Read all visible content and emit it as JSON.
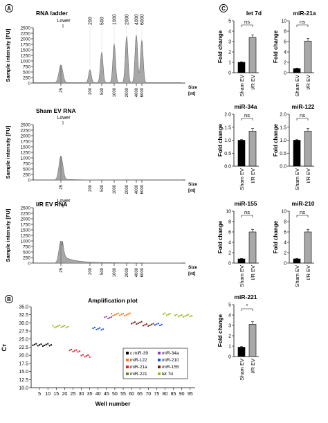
{
  "panel_labels": {
    "a": "A",
    "b": "B",
    "c": "C"
  },
  "electropherograms": [
    {
      "title": "RNA ladder",
      "ylabel": "Sample intensity [FU]",
      "ylim": [
        0,
        2500
      ],
      "yticks": [
        "0",
        "250",
        "500",
        "750",
        "1000",
        "1250",
        "1500",
        "1750",
        "2000",
        "2250",
        "2500"
      ],
      "xlabel": "Size",
      "xunit": "[nt]",
      "top_markers": [
        "Lower",
        "200",
        "500",
        "1000",
        "2000",
        "4000",
        "6000"
      ],
      "bottom_ticks": [
        "25",
        "200",
        "500",
        "1000",
        "2000",
        "4000",
        "6000"
      ]
    },
    {
      "title": "Sham EV RNA",
      "ylabel": "Sample intensity [FU]",
      "ylim": [
        0,
        2500
      ],
      "yticks": [
        "0",
        "250",
        "500",
        "750",
        "1000",
        "1250",
        "1500",
        "1750",
        "2000",
        "2250",
        "2500"
      ],
      "xlabel": "Size",
      "xunit": "[nt]",
      "top_markers": [
        "Lower"
      ],
      "bottom_ticks": [
        "25",
        "200",
        "500",
        "1000",
        "2000",
        "4000",
        "6000"
      ]
    },
    {
      "title": "I/R EV RNA",
      "ylabel": "Sample intensity [FU]",
      "ylim": [
        0,
        2500
      ],
      "yticks": [
        "0",
        "250",
        "500",
        "750",
        "1000",
        "1250",
        "1500",
        "1750",
        "2000",
        "2250",
        "2500"
      ],
      "xlabel": "Size",
      "xunit": "[nt]",
      "top_markers": [
        "Lower"
      ],
      "bottom_ticks": [
        "25",
        "200",
        "500",
        "1000",
        "2000",
        "4000",
        "6000"
      ]
    }
  ],
  "chart_data": [
    {
      "type": "area",
      "title": "RNA ladder",
      "peaks": [
        {
          "label": "25",
          "height": 800
        },
        {
          "label": "200",
          "height": 590
        },
        {
          "label": "500",
          "height": 1380
        },
        {
          "label": "1000",
          "height": 1750
        },
        {
          "label": "2000",
          "height": 2100
        },
        {
          "label": "4000",
          "height": 2160
        },
        {
          "label": "6000",
          "height": 1930
        }
      ]
    },
    {
      "type": "area",
      "title": "Sham EV RNA",
      "peaks": [
        {
          "label": "25",
          "height": 1080
        }
      ]
    },
    {
      "type": "area",
      "title": "I/R EV RNA",
      "peaks": [
        {
          "label": "25",
          "height": 1000
        }
      ]
    },
    {
      "type": "scatter",
      "title": "Amplification plot",
      "xlabel": "Well number",
      "ylabel": "Cт",
      "ylim": [
        10,
        35
      ],
      "yticks": [
        "10.0",
        "12.5",
        "15.0",
        "17.5",
        "20.0",
        "22.5",
        "25.0",
        "27.5",
        "30.0",
        "32.5",
        "35.0"
      ],
      "xlim": [
        0,
        98
      ],
      "xticks": [
        "5",
        "10",
        "15",
        "20",
        "25",
        "30",
        "35",
        "40",
        "45",
        "50",
        "55",
        "60",
        "65",
        "70",
        "75",
        "80",
        "85",
        "90",
        "95"
      ],
      "legend": [
        {
          "name": "c.miR-39",
          "color": "#000000"
        },
        {
          "name": "miR-34a",
          "color": "#8b3fa8"
        },
        {
          "name": "miR-122",
          "color": "#f07a1e"
        },
        {
          "name": "miR-210",
          "color": "#1f4fd8"
        },
        {
          "name": "miR-21a",
          "color": "#e0202a"
        },
        {
          "name": "miR-155",
          "color": "#7a1a1a"
        },
        {
          "name": "miR-221",
          "color": "#5a8a2a"
        },
        {
          "name": "let 7d",
          "color": "#9ab820"
        }
      ],
      "groups": [
        {
          "series": "c.miR-39",
          "x": [
            1,
            12
          ],
          "y": 23.2
        },
        {
          "series": "let 7d",
          "x": [
            13,
            22
          ],
          "y": 28.9
        },
        {
          "series": "miR-21a",
          "x": [
            23,
            29
          ],
          "y": 21.4
        },
        {
          "series": "miR-21a",
          "x": [
            30,
            35
          ],
          "y": 19.8
        },
        {
          "series": "miR-210",
          "x": [
            37,
            43
          ],
          "y": 28.2
        },
        {
          "series": "miR-34a",
          "x": [
            44,
            48
          ],
          "y": 31.6
        },
        {
          "series": "miR-122",
          "x": [
            48,
            59
          ],
          "y": 32.6
        },
        {
          "series": "miR-155",
          "x": [
            60,
            66
          ],
          "y": 30.0
        },
        {
          "series": "miR-155",
          "x": [
            67,
            73
          ],
          "y": 29.4
        },
        {
          "series": "miR-210",
          "x": [
            74,
            78
          ],
          "y": 29.6
        },
        {
          "series": "let 7d",
          "x": [
            79,
            83
          ],
          "y": 32.6
        },
        {
          "series": "let 7d",
          "x": [
            86,
            96
          ],
          "y": 32.2
        }
      ]
    },
    {
      "type": "bar",
      "title": "let 7d",
      "categories": [
        "Sham EV",
        "I/R EV"
      ],
      "values": [
        1.0,
        3.4
      ],
      "ylim": [
        0,
        5
      ],
      "yticks": [
        "0",
        "1",
        "2",
        "3",
        "4",
        "5"
      ],
      "ylabel": "Fold change",
      "sig": "ns"
    },
    {
      "type": "bar",
      "title": "miR-21a",
      "categories": [
        "Sham EV",
        "I/R EV"
      ],
      "values": [
        0.8,
        6.1
      ],
      "ylim": [
        0,
        10
      ],
      "yticks": [
        "0",
        "2",
        "4",
        "6",
        "8",
        "10"
      ],
      "ylabel": "Fold change",
      "sig": "ns"
    },
    {
      "type": "bar",
      "title": "miR-34a",
      "categories": [
        "Sham EV",
        "I/R EV"
      ],
      "values": [
        1.0,
        1.35
      ],
      "ylim": [
        0,
        2.0
      ],
      "yticks": [
        "0.0",
        "0.5",
        "1.0",
        "1.5",
        "2.0"
      ],
      "ylabel": "Fold change",
      "sig": "ns"
    },
    {
      "type": "bar",
      "title": "miR-122",
      "categories": [
        "Sham EV",
        "I/R EV"
      ],
      "values": [
        1.0,
        1.35
      ],
      "ylim": [
        0,
        2.0
      ],
      "yticks": [
        "0.0",
        "0.5",
        "1.0",
        "1.5",
        "2.0"
      ],
      "ylabel": "Fold change",
      "sig": "ns"
    },
    {
      "type": "bar",
      "title": "miR-155",
      "categories": [
        "Sham EV",
        "I/R EV"
      ],
      "values": [
        0.8,
        6.0
      ],
      "ylim": [
        0,
        10
      ],
      "yticks": [
        "0",
        "2",
        "4",
        "6",
        "8",
        "10"
      ],
      "ylabel": "Fold change",
      "sig": "ns"
    },
    {
      "type": "bar",
      "title": "miR-210",
      "categories": [
        "Sham EV",
        "I/R EV"
      ],
      "values": [
        0.8,
        6.0
      ],
      "ylim": [
        0,
        10
      ],
      "yticks": [
        "0",
        "2",
        "4",
        "6",
        "8",
        "10"
      ],
      "ylabel": "Fold change",
      "sig": "ns"
    },
    {
      "type": "bar",
      "title": "miR-221",
      "categories": [
        "Sham EV",
        "I/R EV"
      ],
      "values": [
        0.9,
        3.1
      ],
      "ylim": [
        0,
        5
      ],
      "yticks": [
        "0",
        "1",
        "2",
        "3",
        "4",
        "5"
      ],
      "ylabel": "Fold change",
      "sig": "*"
    }
  ]
}
